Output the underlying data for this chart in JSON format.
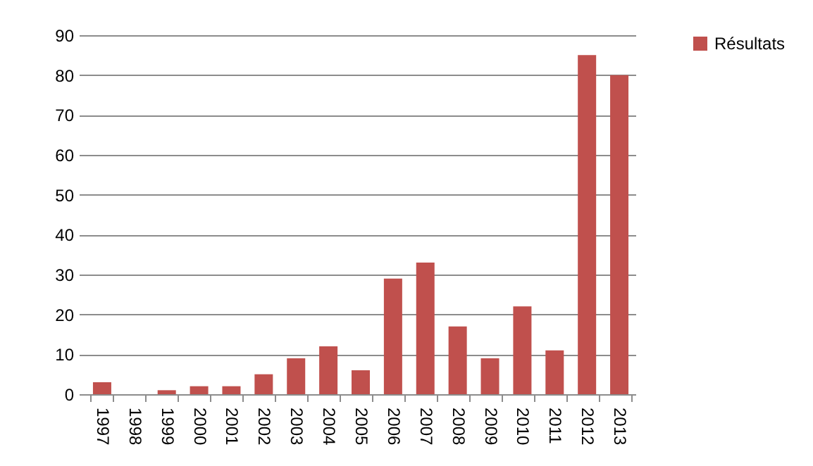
{
  "chart_data": {
    "type": "bar",
    "categories": [
      "1997",
      "1998",
      "1999",
      "2000",
      "2001",
      "2002",
      "2003",
      "2004",
      "2005",
      "2006",
      "2007",
      "2008",
      "2009",
      "2010",
      "2011",
      "2012",
      "2013"
    ],
    "series": [
      {
        "name": "Résultats",
        "color": "#c0504d",
        "values": [
          3,
          0,
          1,
          2,
          2,
          5,
          9,
          12,
          6,
          29,
          33,
          17,
          9,
          22,
          11,
          85,
          80
        ]
      }
    ],
    "ylim": [
      0,
      90
    ],
    "yticks": [
      0,
      10,
      20,
      30,
      40,
      50,
      60,
      70,
      80,
      90
    ],
    "grid": "y",
    "legend": "right"
  }
}
